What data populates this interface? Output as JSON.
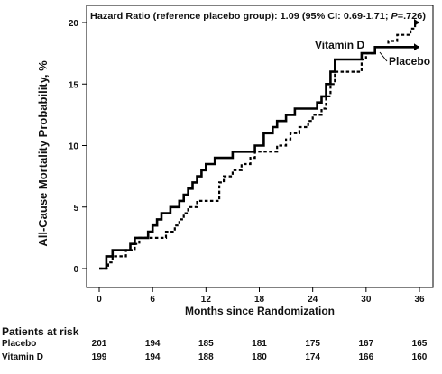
{
  "chart_data": {
    "type": "line",
    "title": "Hazard Ratio (reference placebo group): 1.09 (95% CI: 0.69-1.71; P=.726)",
    "title_parts": {
      "before": "Hazard Ratio (reference placebo group): 1.09 (95% CI: 0.69-1.71; ",
      "p_symbol": "P",
      "after": "=.726)"
    },
    "xlabel": "Months since Randomization",
    "ylabel": "All-Cause Mortality Probability, %",
    "xlim": [
      0,
      36
    ],
    "ylim": [
      0,
      20
    ],
    "xticks": [
      0,
      6,
      12,
      18,
      24,
      30,
      36
    ],
    "yticks": [
      0,
      5,
      10,
      15,
      20
    ],
    "grid": false,
    "series": [
      {
        "name": "Placebo",
        "style": "solid",
        "color": "#000000",
        "points": [
          [
            0,
            0
          ],
          [
            0.8,
            0
          ],
          [
            0.8,
            1
          ],
          [
            1.5,
            1
          ],
          [
            1.5,
            1.5
          ],
          [
            3.5,
            1.5
          ],
          [
            3.5,
            2
          ],
          [
            4.0,
            2
          ],
          [
            4.0,
            2.5
          ],
          [
            5.5,
            2.5
          ],
          [
            5.5,
            3
          ],
          [
            6.0,
            3
          ],
          [
            6.0,
            3.5
          ],
          [
            6.5,
            3.5
          ],
          [
            6.5,
            4
          ],
          [
            7.0,
            4
          ],
          [
            7.0,
            4.5
          ],
          [
            8.0,
            4.5
          ],
          [
            8.0,
            5
          ],
          [
            9.0,
            5
          ],
          [
            9.0,
            5.5
          ],
          [
            9.5,
            5.5
          ],
          [
            9.5,
            6
          ],
          [
            10.0,
            6
          ],
          [
            10.0,
            6.5
          ],
          [
            10.5,
            6.5
          ],
          [
            10.5,
            7
          ],
          [
            11.0,
            7
          ],
          [
            11.0,
            7.5
          ],
          [
            11.5,
            7.5
          ],
          [
            11.5,
            8
          ],
          [
            12.0,
            8
          ],
          [
            12.0,
            8.5
          ],
          [
            13.0,
            8.5
          ],
          [
            13.0,
            9
          ],
          [
            15.0,
            9
          ],
          [
            15.0,
            9.5
          ],
          [
            17.5,
            9.5
          ],
          [
            17.5,
            10
          ],
          [
            18.5,
            10
          ],
          [
            18.5,
            11
          ],
          [
            19.5,
            11
          ],
          [
            19.5,
            11.5
          ],
          [
            20.0,
            11.5
          ],
          [
            20.0,
            12
          ],
          [
            21.0,
            12
          ],
          [
            21.0,
            12.5
          ],
          [
            22.0,
            12.5
          ],
          [
            22.0,
            13
          ],
          [
            24.5,
            13
          ],
          [
            24.5,
            13.5
          ],
          [
            25.0,
            13.5
          ],
          [
            25.0,
            14
          ],
          [
            25.5,
            14
          ],
          [
            25.5,
            15
          ],
          [
            26.0,
            15
          ],
          [
            26.0,
            16
          ],
          [
            26.5,
            16
          ],
          [
            26.5,
            17
          ],
          [
            29.5,
            17
          ],
          [
            29.5,
            17.5
          ],
          [
            31.0,
            17.5
          ],
          [
            31.0,
            18
          ],
          [
            36.0,
            18
          ]
        ]
      },
      {
        "name": "Vitamin D",
        "style": "dashed",
        "color": "#000000",
        "points": [
          [
            0,
            0
          ],
          [
            1.0,
            0
          ],
          [
            1.0,
            0.5
          ],
          [
            1.5,
            0.5
          ],
          [
            1.5,
            1
          ],
          [
            3.0,
            1
          ],
          [
            3.0,
            1.5
          ],
          [
            4.0,
            1.5
          ],
          [
            4.0,
            2
          ],
          [
            4.5,
            2
          ],
          [
            4.5,
            2.5
          ],
          [
            7.5,
            2.5
          ],
          [
            7.5,
            3
          ],
          [
            8.5,
            3
          ],
          [
            8.5,
            3.5
          ],
          [
            9.0,
            3.5
          ],
          [
            9.0,
            4
          ],
          [
            9.5,
            4
          ],
          [
            9.5,
            4.5
          ],
          [
            10.0,
            4.5
          ],
          [
            10.0,
            5
          ],
          [
            11.0,
            5
          ],
          [
            11.0,
            5.5
          ],
          [
            13.5,
            5.5
          ],
          [
            13.5,
            7
          ],
          [
            14.0,
            7
          ],
          [
            14.0,
            7.5
          ],
          [
            15.0,
            7.5
          ],
          [
            15.0,
            8
          ],
          [
            16.0,
            8
          ],
          [
            16.0,
            8.5
          ],
          [
            17.0,
            8.5
          ],
          [
            17.0,
            9
          ],
          [
            17.5,
            9
          ],
          [
            17.5,
            9.5
          ],
          [
            20.0,
            9.5
          ],
          [
            20.0,
            10
          ],
          [
            21.0,
            10
          ],
          [
            21.0,
            10.5
          ],
          [
            21.5,
            10.5
          ],
          [
            21.5,
            11
          ],
          [
            22.5,
            11
          ],
          [
            22.5,
            11.5
          ],
          [
            23.5,
            11.5
          ],
          [
            23.5,
            12
          ],
          [
            24.0,
            12
          ],
          [
            24.0,
            12.5
          ],
          [
            25.0,
            12.5
          ],
          [
            25.0,
            13
          ],
          [
            25.5,
            13
          ],
          [
            25.5,
            14
          ],
          [
            26.0,
            14
          ],
          [
            26.0,
            15
          ],
          [
            26.5,
            15
          ],
          [
            26.5,
            16
          ],
          [
            29.5,
            16
          ],
          [
            29.5,
            17
          ],
          [
            30.0,
            17
          ],
          [
            30.0,
            17.5
          ],
          [
            31.0,
            17.5
          ],
          [
            31.0,
            18
          ],
          [
            32.5,
            18
          ],
          [
            32.5,
            18.5
          ],
          [
            33.5,
            18.5
          ],
          [
            33.5,
            19
          ],
          [
            35.0,
            19
          ],
          [
            35.0,
            19.5
          ],
          [
            35.5,
            19.5
          ],
          [
            35.5,
            20
          ],
          [
            36.0,
            20
          ]
        ]
      }
    ],
    "series_labels": [
      {
        "text": "Vitamin D",
        "series": "Vitamin D"
      },
      {
        "text": "Placebo",
        "series": "Placebo"
      }
    ]
  },
  "risk_table": {
    "title": "Patients at risk",
    "months": [
      0,
      6,
      12,
      18,
      24,
      30,
      36
    ],
    "rows": [
      {
        "label": "Placebo",
        "values": [
          "201",
          "194",
          "185",
          "181",
          "175",
          "167",
          "165"
        ]
      },
      {
        "label": "Vitamin D",
        "values": [
          "199",
          "194",
          "188",
          "180",
          "174",
          "166",
          "160"
        ]
      }
    ]
  }
}
